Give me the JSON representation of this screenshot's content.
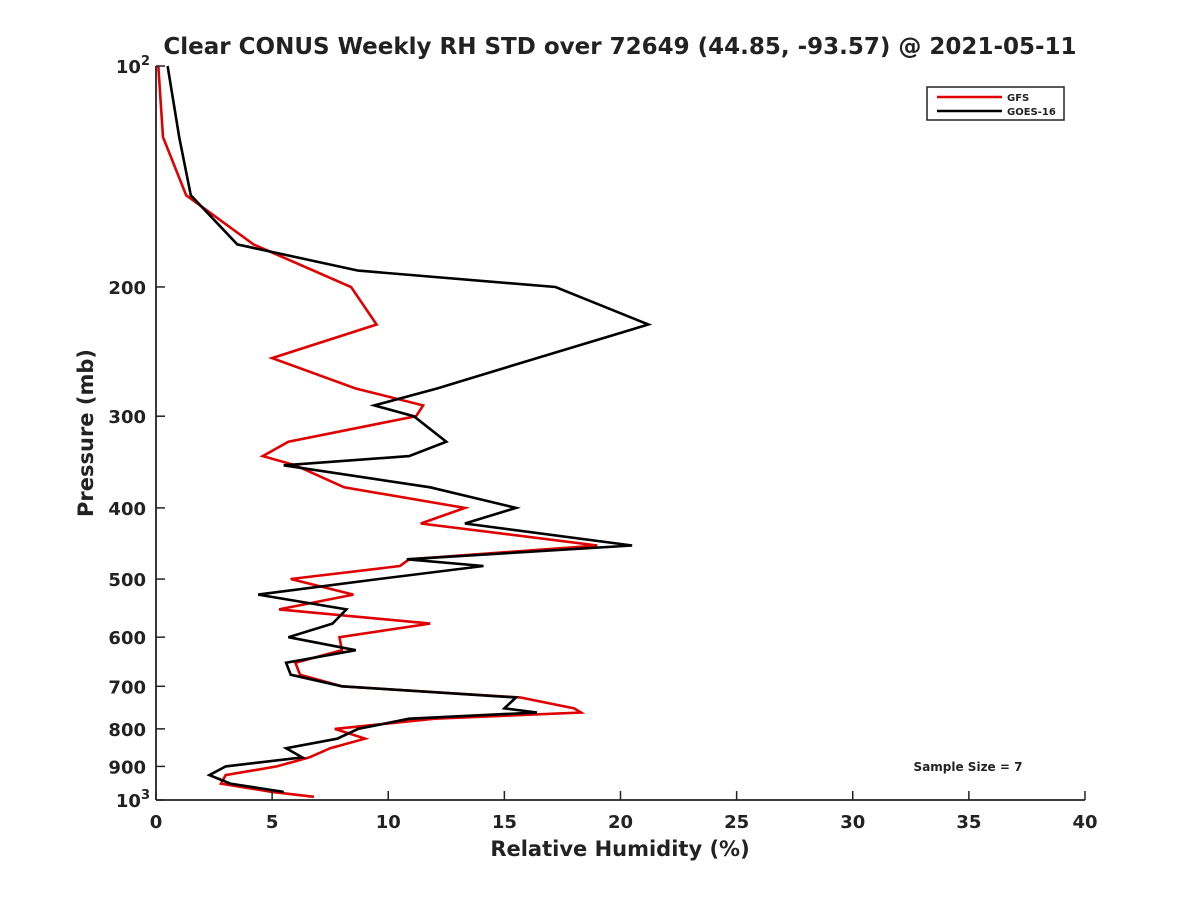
{
  "chart_data": {
    "type": "line",
    "title": "Clear CONUS Weekly RH STD over 72649 (44.85, -93.57) @ 2021-05-11",
    "xlabel": "Relative Humidity (%)",
    "ylabel": "Pressure (mb)",
    "xlim": [
      0,
      40
    ],
    "ylim": [
      100,
      1000
    ],
    "yscale": "log",
    "y_reversed": true,
    "grid": false,
    "legend": "top-right",
    "x_ticks": [
      "0",
      "5",
      "10",
      "15",
      "20",
      "25",
      "30",
      "35",
      "40"
    ],
    "y_ticks": [
      {
        "value": 100,
        "label": "10",
        "exp": "2"
      },
      {
        "value": 200,
        "label": "200",
        "exp": ""
      },
      {
        "value": 300,
        "label": "300",
        "exp": ""
      },
      {
        "value": 400,
        "label": "400",
        "exp": ""
      },
      {
        "value": 500,
        "label": "500",
        "exp": ""
      },
      {
        "value": 600,
        "label": "600",
        "exp": ""
      },
      {
        "value": 700,
        "label": "700",
        "exp": ""
      },
      {
        "value": 800,
        "label": "800",
        "exp": ""
      },
      {
        "value": 900,
        "label": "900",
        "exp": ""
      },
      {
        "value": 1000,
        "label": "10",
        "exp": "3"
      }
    ],
    "annotation": "Sample Size = 7",
    "series": [
      {
        "name": "GFS",
        "color": "#e00000",
        "points": [
          [
            0.1,
            100
          ],
          [
            0.3,
            125
          ],
          [
            1.3,
            150
          ],
          [
            4.2,
            175
          ],
          [
            8.4,
            200
          ],
          [
            9.5,
            225
          ],
          [
            5.0,
            250
          ],
          [
            8.6,
            275
          ],
          [
            11.5,
            290
          ],
          [
            11.2,
            300
          ],
          [
            5.7,
            325
          ],
          [
            4.6,
            340
          ],
          [
            6.0,
            350
          ],
          [
            8.1,
            375
          ],
          [
            13.3,
            400
          ],
          [
            11.4,
            420
          ],
          [
            19.0,
            450
          ],
          [
            10.9,
            470
          ],
          [
            10.5,
            480
          ],
          [
            5.8,
            500
          ],
          [
            8.5,
            525
          ],
          [
            5.3,
            550
          ],
          [
            11.8,
            575
          ],
          [
            7.9,
            600
          ],
          [
            8.0,
            625
          ],
          [
            6.0,
            650
          ],
          [
            6.2,
            675
          ],
          [
            8.0,
            700
          ],
          [
            15.7,
            725
          ],
          [
            18.0,
            750
          ],
          [
            18.3,
            760
          ],
          [
            12.0,
            775
          ],
          [
            7.7,
            800
          ],
          [
            9.0,
            825
          ],
          [
            7.5,
            850
          ],
          [
            6.6,
            875
          ],
          [
            5.2,
            900
          ],
          [
            3.0,
            925
          ],
          [
            2.8,
            950
          ],
          [
            5.0,
            975
          ],
          [
            6.8,
            990
          ]
        ]
      },
      {
        "name": "GOES-16",
        "color": "#000000",
        "points": [
          [
            0.5,
            100
          ],
          [
            1.0,
            125
          ],
          [
            1.5,
            150
          ],
          [
            3.5,
            175
          ],
          [
            8.7,
            190
          ],
          [
            17.2,
            200
          ],
          [
            21.2,
            225
          ],
          [
            16.4,
            250
          ],
          [
            12.1,
            275
          ],
          [
            9.4,
            290
          ],
          [
            11.1,
            300
          ],
          [
            12.5,
            325
          ],
          [
            10.9,
            340
          ],
          [
            5.5,
            350
          ],
          [
            11.8,
            375
          ],
          [
            15.5,
            400
          ],
          [
            13.3,
            420
          ],
          [
            20.5,
            450
          ],
          [
            10.8,
            470
          ],
          [
            14.1,
            480
          ],
          [
            9.6,
            500
          ],
          [
            4.4,
            525
          ],
          [
            8.2,
            550
          ],
          [
            7.6,
            575
          ],
          [
            5.7,
            600
          ],
          [
            8.6,
            625
          ],
          [
            5.6,
            650
          ],
          [
            5.8,
            675
          ],
          [
            8.0,
            700
          ],
          [
            15.5,
            725
          ],
          [
            15.0,
            750
          ],
          [
            16.4,
            760
          ],
          [
            10.9,
            775
          ],
          [
            8.7,
            800
          ],
          [
            7.8,
            825
          ],
          [
            5.6,
            850
          ],
          [
            6.3,
            875
          ],
          [
            3.0,
            900
          ],
          [
            2.3,
            925
          ],
          [
            3.2,
            950
          ],
          [
            5.5,
            975
          ]
        ]
      }
    ]
  }
}
